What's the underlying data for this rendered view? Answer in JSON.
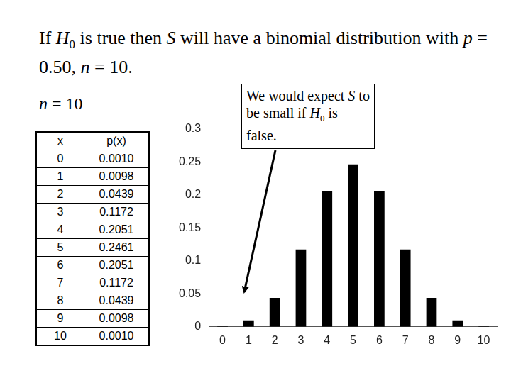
{
  "title": "If H0 is true then S will have a binomial distribution with p = 0.50, n = 10.",
  "table_label": "n = 10",
  "table": {
    "header": [
      "x",
      "p(x)"
    ],
    "rows": [
      [
        0,
        "0.0010"
      ],
      [
        1,
        "0.0098"
      ],
      [
        2,
        "0.0439"
      ],
      [
        3,
        "0.1172"
      ],
      [
        4,
        "0.2051"
      ],
      [
        5,
        "0.2461"
      ],
      [
        6,
        "0.2051"
      ],
      [
        7,
        "0.1172"
      ],
      [
        8,
        "0.0439"
      ],
      [
        9,
        "0.0098"
      ],
      [
        10,
        "0.0010"
      ]
    ]
  },
  "annotation": "We would expect S to be small if H0 is false.",
  "chart_data": {
    "type": "bar",
    "categories": [
      0,
      1,
      2,
      3,
      4,
      5,
      6,
      7,
      8,
      9,
      10
    ],
    "values": [
      0.001,
      0.0098,
      0.0439,
      0.1172,
      0.2051,
      0.2461,
      0.2051,
      0.1172,
      0.0439,
      0.0098,
      0.001
    ],
    "color": "#000000",
    "ylim": [
      0,
      0.3
    ],
    "yticks": [
      0,
      0.05,
      0.1,
      0.15,
      0.2,
      0.25,
      0.3
    ],
    "grid": false
  }
}
